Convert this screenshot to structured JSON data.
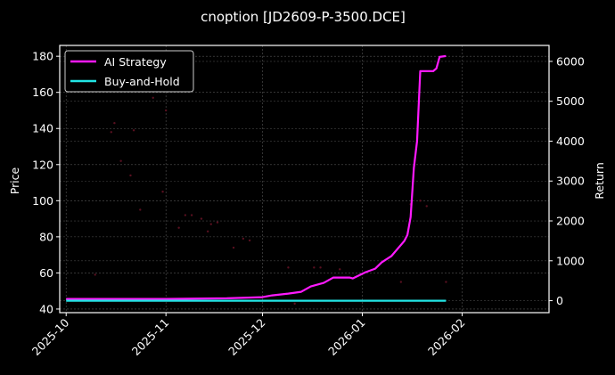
{
  "chart_data": {
    "type": "line",
    "title": "cnoption [JD2609-P-3500.DCE]",
    "xlabel": "",
    "ylabel_left": "Price",
    "ylabel_right": "Return",
    "x_ticks": [
      "2025-10",
      "2025-11",
      "2025-12",
      "2026-01",
      "2026-02"
    ],
    "y_left_ticks": [
      40,
      60,
      80,
      100,
      120,
      140,
      160,
      180
    ],
    "y_right_ticks": [
      0,
      1000,
      2000,
      3000,
      4000,
      5000,
      6000
    ],
    "ylim_left": [
      38,
      186
    ],
    "ylim_right": [
      -300,
      6400
    ],
    "xlim": [
      "2025-09-29",
      "2026-02-28"
    ],
    "grid": true,
    "legend_position": "upper left",
    "legend": [
      "AI Strategy",
      "Buy-and-Hold"
    ],
    "colors": {
      "ai_strategy": "#ff1aff",
      "buy_and_hold": "#22e5e5",
      "price_dots": "#5a1020",
      "background": "#000000",
      "grid": "#555555"
    },
    "series": [
      {
        "name": "AI Strategy",
        "axis": "right",
        "points": [
          [
            "2025-10-01",
            45
          ],
          [
            "2025-11-01",
            45
          ],
          [
            "2025-11-20",
            60
          ],
          [
            "2025-12-01",
            89
          ],
          [
            "2025-12-04",
            134
          ],
          [
            "2025-12-09",
            178
          ],
          [
            "2025-12-13",
            223
          ],
          [
            "2025-12-16",
            357
          ],
          [
            "2025-12-20",
            446
          ],
          [
            "2025-12-23",
            580
          ],
          [
            "2025-12-28",
            580
          ],
          [
            "2025-12-29",
            558
          ],
          [
            "2026-01-02",
            714
          ],
          [
            "2026-01-05",
            803
          ],
          [
            "2026-01-07",
            959
          ],
          [
            "2026-01-10",
            1115
          ],
          [
            "2026-01-14",
            1494
          ],
          [
            "2026-01-15",
            1650
          ],
          [
            "2026-01-16",
            2096
          ],
          [
            "2026-01-17",
            3323
          ],
          [
            "2026-01-18",
            3992
          ],
          [
            "2026-01-19",
            5755
          ],
          [
            "2026-01-23",
            5755
          ],
          [
            "2026-01-24",
            5822
          ],
          [
            "2026-01-25",
            6112
          ],
          [
            "2026-01-27",
            6134
          ]
        ]
      },
      {
        "name": "Buy-and-Hold",
        "axis": "right",
        "points": [
          [
            "2025-10-01",
            0
          ],
          [
            "2026-01-27",
            0
          ]
        ]
      },
      {
        "name": "Price",
        "axis": "left",
        "type": "scatter",
        "points": [
          [
            "2025-10-10",
            59
          ],
          [
            "2025-10-15",
            138
          ],
          [
            "2025-10-16",
            143
          ],
          [
            "2025-10-18",
            122
          ],
          [
            "2025-10-21",
            114
          ],
          [
            "2025-10-22",
            139
          ],
          [
            "2025-10-24",
            95
          ],
          [
            "2025-10-28",
            157
          ],
          [
            "2025-10-31",
            105
          ],
          [
            "2025-11-01",
            150
          ],
          [
            "2025-11-05",
            85
          ],
          [
            "2025-11-07",
            92
          ],
          [
            "2025-11-09",
            92
          ],
          [
            "2025-11-12",
            90
          ],
          [
            "2025-11-14",
            83
          ],
          [
            "2025-11-15",
            87
          ],
          [
            "2025-11-17",
            88
          ],
          [
            "2025-11-22",
            74
          ],
          [
            "2025-11-25",
            79
          ],
          [
            "2025-11-27",
            78
          ],
          [
            "2025-12-09",
            63
          ],
          [
            "2025-12-11",
            43
          ],
          [
            "2025-12-17",
            63
          ],
          [
            "2025-12-19",
            63
          ],
          [
            "2025-12-25",
            62
          ],
          [
            "2026-01-13",
            55
          ],
          [
            "2026-01-16",
            98
          ],
          [
            "2026-01-19",
            100
          ],
          [
            "2026-01-21",
            97
          ],
          [
            "2026-01-27",
            55
          ]
        ]
      }
    ]
  }
}
